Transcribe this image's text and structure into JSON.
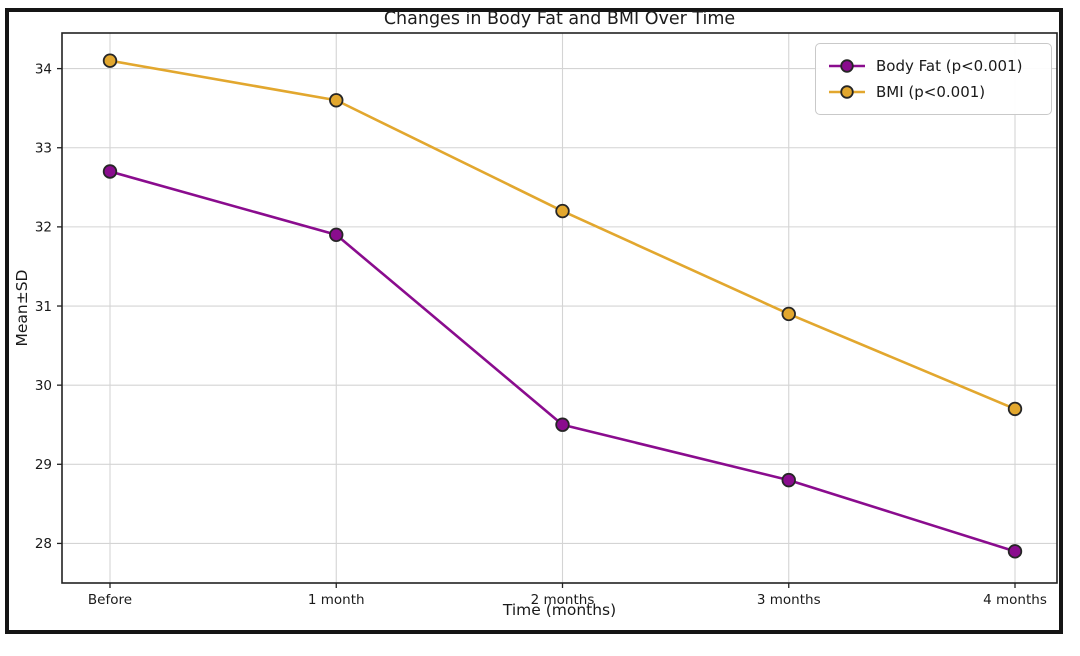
{
  "figure": {
    "frame_color": "#151515",
    "background": "#ffffff"
  },
  "chart_data": {
    "type": "line",
    "title": "Changes in Body Fat and BMI Over Time",
    "xlabel": "Time (months)",
    "ylabel": "Mean±SD",
    "categories": [
      "Before",
      "1 month",
      "2 months",
      "3 months",
      "4 months"
    ],
    "series": [
      {
        "name": "Body Fat (p<0.001)",
        "color": "#8A0C8E",
        "marker": "circle",
        "values": [
          32.7,
          31.9,
          29.5,
          28.8,
          27.9
        ]
      },
      {
        "name": "BMI (p<0.001)",
        "color": "#E2A72E",
        "marker": "circle",
        "values": [
          34.1,
          33.6,
          32.2,
          30.9,
          29.7
        ]
      }
    ],
    "y_ticks": [
      28,
      29,
      30,
      31,
      32,
      33,
      34
    ],
    "ylim": [
      27.5,
      34.45
    ],
    "grid": true,
    "grid_color": "#d4d4d4",
    "marker_edge_color": "#262626",
    "legend_position": "upper right"
  }
}
